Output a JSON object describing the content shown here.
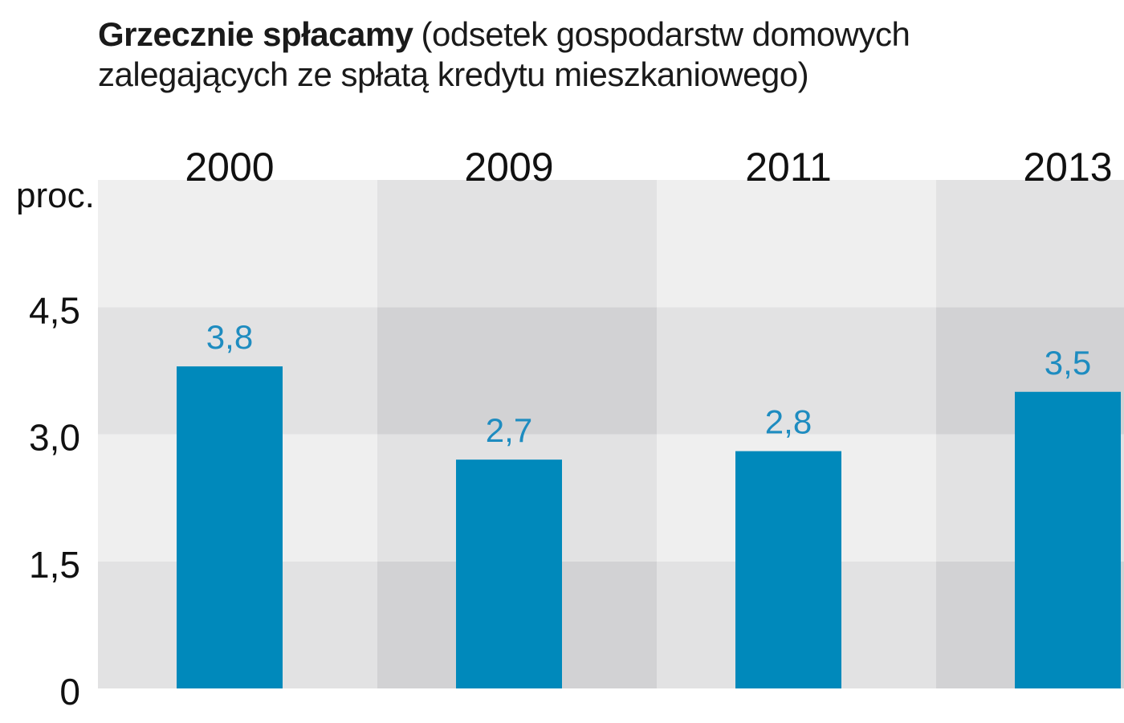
{
  "chart_data": {
    "type": "bar",
    "title": "Grzecznie spłacamy",
    "subtitle": [
      "(odsetek gospodarstw domowych",
      "zalegających ze spłatą kredytu mieszkaniowego)"
    ],
    "ylabel": "proc.",
    "categories": [
      "2000",
      "2009",
      "2011",
      "2013"
    ],
    "values": [
      3.8,
      2.7,
      2.8,
      3.5
    ],
    "data_labels": [
      "3,8",
      "2,7",
      "2,8",
      "3,5"
    ],
    "yticks": [
      0,
      1.5,
      3.0,
      4.5
    ],
    "ytick_labels": [
      "0",
      "1,5",
      "3,0",
      "4,5"
    ],
    "ylim": [
      0,
      6.0
    ],
    "x_axis_position": "top",
    "legend": "none",
    "colors": {
      "bar": "#0089bb",
      "data_label": "#1e8cc0",
      "band_light": "#efefef",
      "band_dark": "#e2e2e3",
      "band_darker": "#d2d2d4"
    }
  }
}
